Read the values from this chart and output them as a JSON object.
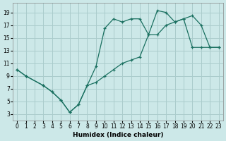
{
  "xlabel": "Humidex (Indice chaleur)",
  "background_color": "#cce8e8",
  "grid_color": "#aacccc",
  "line_color": "#1a7060",
  "xlim": [
    -0.5,
    23.5
  ],
  "ylim": [
    2,
    20.5
  ],
  "xticks": [
    0,
    1,
    2,
    3,
    4,
    5,
    6,
    7,
    8,
    9,
    10,
    11,
    12,
    13,
    14,
    15,
    16,
    17,
    18,
    19,
    20,
    21,
    22,
    23
  ],
  "yticks": [
    3,
    5,
    7,
    9,
    11,
    13,
    15,
    17,
    19
  ],
  "upper_x": [
    0,
    1,
    3,
    4,
    5,
    6,
    7,
    8,
    9,
    10,
    11,
    12,
    13,
    14,
    15,
    16,
    17,
    18,
    19,
    20,
    21,
    22,
    23
  ],
  "upper_y": [
    10,
    9,
    7.5,
    6.5,
    5.2,
    3.3,
    4.5,
    7.5,
    10.5,
    16.5,
    18,
    17.5,
    18,
    18,
    15.5,
    19.3,
    19,
    17.5,
    18,
    18.5,
    17,
    13.5,
    13.5
  ],
  "lower_x": [
    0,
    1,
    3,
    4,
    5,
    6,
    7,
    8,
    9,
    10,
    11,
    12,
    13,
    14,
    15,
    16,
    17,
    18,
    19,
    20,
    21,
    22,
    23
  ],
  "lower_y": [
    10,
    9,
    7.5,
    6.5,
    5.2,
    3.3,
    4.5,
    7.5,
    8.0,
    9.0,
    10.0,
    11.0,
    11.5,
    12.0,
    15.5,
    15.5,
    17.0,
    17.5,
    18.0,
    13.5,
    13.5,
    13.5,
    13.5
  ]
}
